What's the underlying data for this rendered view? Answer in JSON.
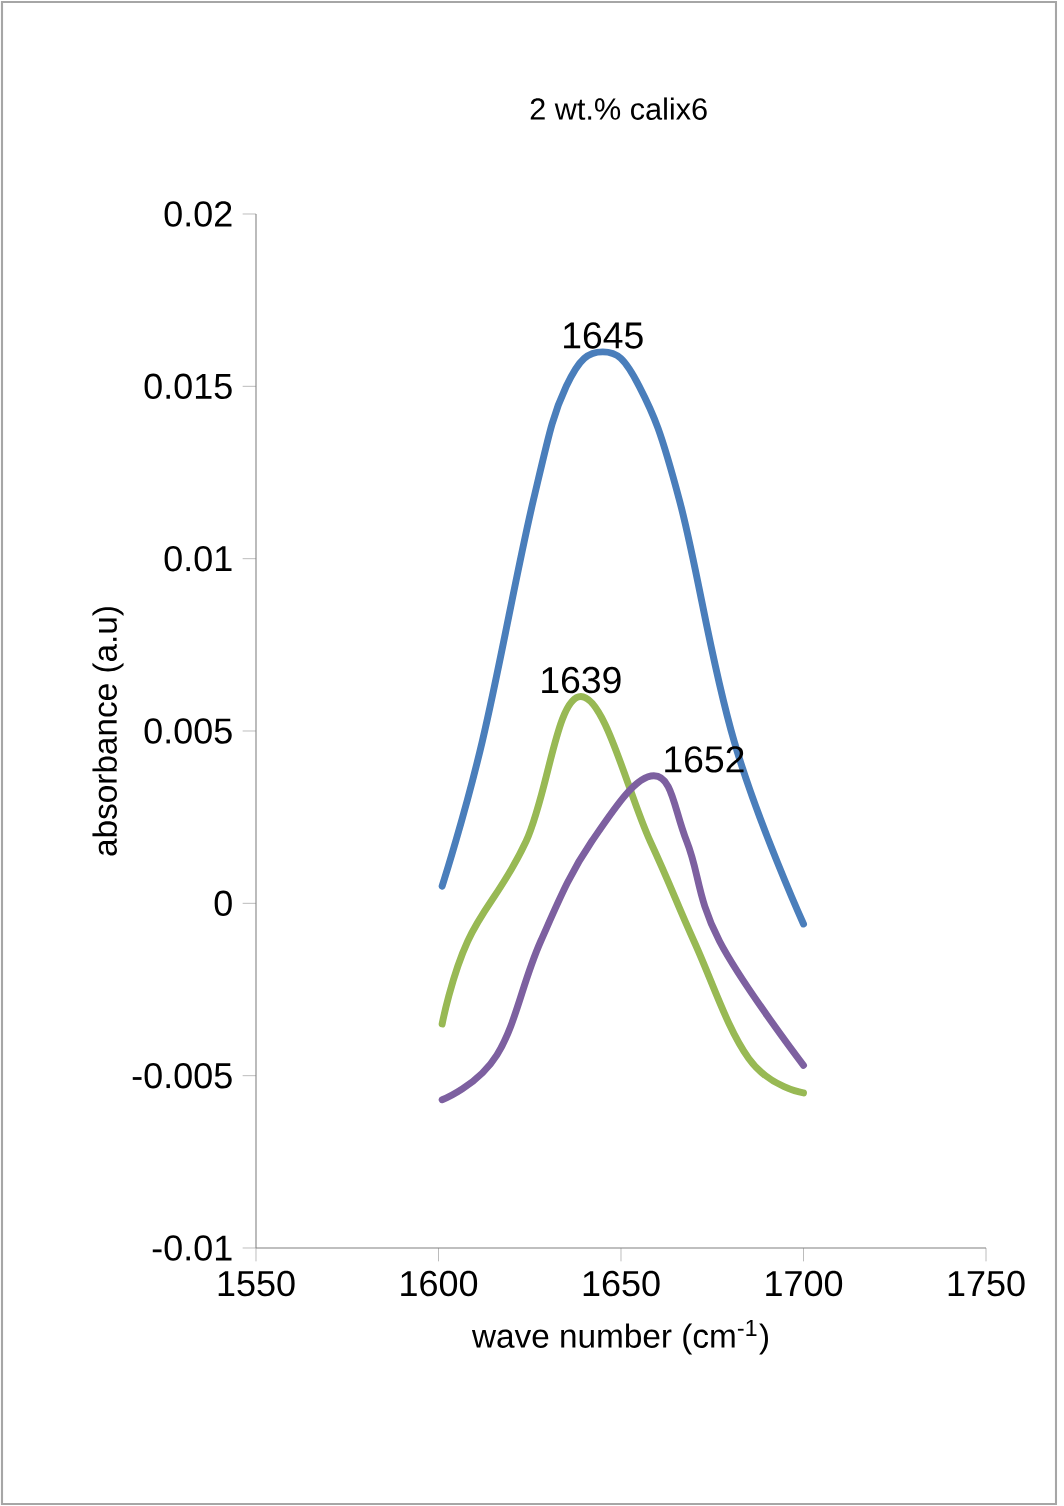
{
  "chart_data": {
    "type": "line",
    "title": "2 wt.% calix6",
    "xlabel": "wave number (cm$^{-1}$)",
    "ylabel": "absorbance (a.u)",
    "xlim": [
      1550,
      1750
    ],
    "xticks": [
      1550,
      1600,
      1650,
      1700,
      1750
    ],
    "ylim": [
      -0.01,
      0.02
    ],
    "yticks": [
      -0.01,
      -0.005,
      0,
      0.005,
      0.01,
      0.015,
      0.02
    ],
    "grid": false,
    "series": [
      {
        "color": "#4a7ebb",
        "x": [
          1601,
          1612,
          1626,
          1635,
          1645,
          1655,
          1666,
          1681,
          1700
        ],
        "values": [
          0.0005,
          0.0047,
          0.0117,
          0.015,
          0.016,
          0.015,
          0.0117,
          0.0047,
          -0.0006
        ]
      },
      {
        "color": "#98b954",
        "x": [
          1601,
          1608,
          1624,
          1639,
          1658,
          1670,
          1685,
          1700
        ],
        "values": [
          -0.0035,
          -0.0011,
          0.0018,
          0.006,
          0.0018,
          -0.0011,
          -0.0045,
          -0.0055
        ]
      },
      {
        "color": "#7d60a0",
        "x": [
          1601,
          1616,
          1628,
          1642,
          1659,
          1668,
          1677,
          1700
        ],
        "values": [
          -0.0057,
          -0.0044,
          -0.0011,
          0.0018,
          0.0037,
          0.0018,
          -0.0011,
          -0.0047
        ]
      }
    ],
    "annotations": [
      {
        "text": "1645",
        "x": 1645,
        "y": 0.016
      },
      {
        "text": "1639",
        "x": 1639,
        "y": 0.006
      },
      {
        "text": "1652",
        "x": 1659,
        "y": 0.0037
      }
    ]
  }
}
